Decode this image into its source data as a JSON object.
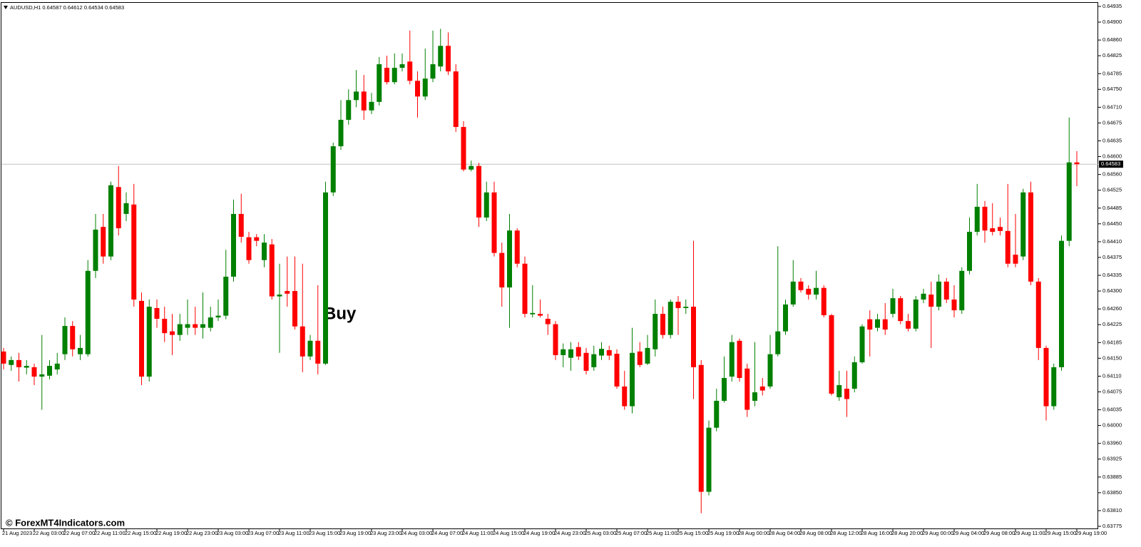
{
  "chart_data": {
    "type": "candlestick",
    "header": "AUDUSD,H1  0.64587 0.64612 0.64534 0.64583",
    "annotation": "Buy",
    "up_color": "#008000",
    "down_color": "#ff0000",
    "current_price": 0.64583,
    "ylim": [
      0.63775,
      0.64935
    ],
    "yticks": [
      0.64935,
      {
        "value": 0.649,
        "label": "0.64900"
      },
      {
        "value": 0.6486,
        "label": "0.64860"
      },
      0.64825,
      0.64785,
      {
        "value": 0.6475,
        "label": "0.64750"
      },
      {
        "value": 0.6471,
        "label": "0.64710"
      },
      0.64675,
      0.64635,
      {
        "value": 0.646,
        "label": "0.64600"
      },
      {
        "value": 0.6456,
        "label": "0.64560"
      },
      0.64525,
      0.64485,
      {
        "value": 0.6445,
        "label": "0.64450"
      },
      {
        "value": 0.6441,
        "label": "0.64410"
      },
      0.64375,
      0.64335,
      {
        "value": 0.643,
        "label": "0.64300"
      },
      {
        "value": 0.6426,
        "label": "0.64260"
      },
      0.64225,
      0.64185,
      {
        "value": 0.6415,
        "label": "0.64150"
      },
      {
        "value": 0.6411,
        "label": "0.64110"
      },
      0.64075,
      0.64035,
      {
        "value": 0.64,
        "label": "0.64000"
      },
      {
        "value": 0.6396,
        "label": "0.63960"
      },
      0.63925,
      0.63885,
      {
        "value": 0.6385,
        "label": "0.63850"
      },
      {
        "value": 0.6381,
        "label": "0.63810"
      },
      0.63775
    ],
    "categories": [
      "21 Aug 2023",
      null,
      null,
      null,
      "22 Aug 03:00",
      null,
      null,
      null,
      "22 Aug 07:00",
      null,
      null,
      null,
      "22 Aug 11:00",
      null,
      null,
      null,
      "22 Aug 15:00",
      null,
      null,
      null,
      "22 Aug 19:00",
      null,
      null,
      null,
      "22 Aug 23:00",
      null,
      null,
      null,
      "23 Aug 03:00",
      null,
      null,
      null,
      "23 Aug 07:00",
      null,
      null,
      null,
      "23 Aug 11:00",
      null,
      null,
      null,
      "23 Aug 15:00",
      null,
      null,
      null,
      "23 Aug 19:00",
      null,
      null,
      null,
      "23 Aug 23:00",
      null,
      null,
      null,
      "24 Aug 03:00",
      null,
      null,
      null,
      "24 Aug 07:00",
      null,
      null,
      null,
      "24 Aug 11:00",
      null,
      null,
      null,
      "24 Aug 15:00",
      null,
      null,
      null,
      "24 Aug 19:00",
      null,
      null,
      null,
      "24 Aug 23:00",
      null,
      null,
      null,
      "25 Aug 03:00",
      null,
      null,
      null,
      "25 Aug 07:00",
      null,
      null,
      null,
      "25 Aug 11:00",
      null,
      null,
      null,
      "25 Aug 15:00",
      null,
      null,
      null,
      "25 Aug 19:00",
      null,
      null,
      null,
      "28 Aug 00:00",
      null,
      null,
      null,
      "28 Aug 04:00",
      null,
      null,
      null,
      "28 Aug 08:00",
      null,
      null,
      null,
      "28 Aug 12:00",
      null,
      null,
      null,
      "28 Aug 16:00",
      null,
      null,
      null,
      "28 Aug 20:00",
      null,
      null,
      null,
      "29 Aug 00:00",
      null,
      null,
      null,
      "29 Aug 04:00",
      null,
      null,
      null,
      "29 Aug 08:00",
      null,
      null,
      null,
      "29 Aug 11:00",
      null,
      null,
      null,
      "29 Aug 15:00",
      null,
      null,
      null,
      "29 Aug 19:00"
    ],
    "open": [
      0.64165,
      0.64135,
      0.64146,
      0.64129,
      0.6413,
      0.64109,
      0.64111,
      0.64125,
      0.64159,
      0.64222,
      0.64159,
      0.64159,
      0.64345,
      0.64443,
      0.64377,
      0.64532,
      0.64472,
      0.64493,
      0.64278,
      0.64109,
      0.64262,
      0.64238,
      0.6421,
      0.64202,
      0.64218,
      0.64226,
      0.64218,
      0.64218,
      0.64241,
      0.64245,
      0.64332,
      0.64472,
      0.6442,
      0.6442,
      0.64369,
      0.64404,
      0.64288,
      0.643,
      0.643,
      0.64221,
      0.64154,
      0.64189,
      0.64138,
      0.6452,
      0.64623,
      0.64682,
      0.64726,
      0.64745,
      0.64703,
      0.64722,
      0.64798,
      0.64766,
      0.64798,
      0.64812,
      0.64769,
      0.64734,
      0.64774,
      0.64801,
      0.64847,
      0.6479,
      0.64666,
      0.64571,
      0.64579,
      0.64464,
      0.6452,
      0.64385,
      0.64308,
      0.64435,
      0.64361,
      0.64248,
      0.64249,
      0.64238,
      0.64226,
      0.64157,
      0.64151,
      0.64175,
      0.64162,
      0.6413,
      0.64156,
      0.64168,
      0.6416,
      0.64087,
      0.64043,
      0.64165,
      0.64138,
      0.6417,
      0.64249,
      0.64202,
      0.64276,
      0.64262,
      0.64265,
      0.64135,
      0.63852,
      0.63995,
      0.64055,
      0.64109,
      0.64189,
      0.64127,
      0.64055,
      0.64087,
      0.64087,
      0.64159,
      0.6421,
      0.6427,
      0.64321,
      0.64305,
      0.64292,
      0.64307,
      0.64246,
      0.64063,
      0.64082,
      0.64082,
      0.64141,
      0.64237,
      0.64218,
      0.64237,
      0.64249,
      0.64284,
      0.64233,
      0.64216,
      0.64281,
      0.64292,
      0.64265,
      0.64321,
      0.64281,
      0.64257,
      0.64345,
      0.64432,
      0.64488,
      0.6444,
      0.64443,
      0.64434,
      0.64381,
      0.64377,
      0.6452,
      0.64321,
      0.64173,
      0.64043,
      0.6413,
      0.64412,
      0.64587
    ],
    "high": [
      0.64173,
      0.64154,
      0.64162,
      0.64146,
      0.64138,
      0.64202,
      0.64146,
      0.64162,
      0.64241,
      0.64233,
      0.64202,
      0.64369,
      0.64472,
      0.64472,
      0.64544,
      0.64579,
      0.6452,
      0.64539,
      0.64297,
      0.64281,
      0.64281,
      0.64265,
      0.64249,
      0.64249,
      0.64281,
      0.64265,
      0.64297,
      0.64265,
      0.64281,
      0.64392,
      0.64504,
      0.64517,
      0.64432,
      0.64427,
      0.64427,
      0.64416,
      0.64361,
      0.64377,
      0.64377,
      0.64361,
      0.64202,
      0.64313,
      0.64544,
      0.64631,
      0.64726,
      0.6475,
      0.64793,
      0.64782,
      0.64742,
      0.64822,
      0.64825,
      0.6483,
      0.6483,
      0.64881,
      0.6479,
      0.64841,
      0.64881,
      0.64885,
      0.64877,
      0.64806,
      0.64679,
      0.64591,
      0.64586,
      0.64544,
      0.64544,
      0.64408,
      0.64472,
      0.6444,
      0.64377,
      0.64313,
      0.64281,
      0.64249,
      0.64233,
      0.64183,
      0.64186,
      0.64186,
      0.64173,
      0.64178,
      0.64186,
      0.64178,
      0.6417,
      0.64122,
      0.64218,
      0.64186,
      0.64202,
      0.64281,
      0.64265,
      0.64281,
      0.64289,
      0.64281,
      0.64412,
      0.64146,
      0.64011,
      0.64082,
      0.64154,
      0.64202,
      0.64194,
      0.64138,
      0.64186,
      0.64106,
      0.64202,
      0.644,
      0.64281,
      0.64369,
      0.64329,
      0.64313,
      0.64345,
      0.64313,
      0.64249,
      0.64122,
      0.64122,
      0.64154,
      0.64226,
      0.64257,
      0.64249,
      0.64273,
      0.64305,
      0.64289,
      0.64249,
      0.64289,
      0.64305,
      0.64321,
      0.64337,
      0.64329,
      0.64313,
      0.64353,
      0.64464,
      0.64539,
      0.64501,
      0.64496,
      0.64464,
      0.64539,
      0.64472,
      0.64528,
      0.64544,
      0.64329,
      0.64178,
      0.64138,
      0.64424,
      0.64687,
      0.64612
    ],
    "low": [
      0.64125,
      0.64122,
      0.64098,
      0.64114,
      0.6409,
      0.64035,
      0.64103,
      0.64114,
      0.64146,
      0.64154,
      0.64146,
      0.64154,
      0.64329,
      0.64361,
      0.64369,
      0.64424,
      0.64456,
      0.64265,
      0.6409,
      0.64098,
      0.64218,
      0.64186,
      0.64157,
      0.64189,
      0.64202,
      0.64202,
      0.64194,
      0.6421,
      0.64233,
      0.64237,
      0.64321,
      0.64408,
      0.64361,
      0.644,
      0.64353,
      0.64281,
      0.64162,
      0.64265,
      0.64214,
      0.64119,
      0.64146,
      0.64114,
      0.64135,
      0.64512,
      0.64615,
      0.64671,
      0.6471,
      0.64682,
      0.64695,
      0.64714,
      0.64761,
      0.64761,
      0.6479,
      0.64761,
      0.64687,
      0.64726,
      0.64766,
      0.6479,
      0.64782,
      0.64655,
      0.64567,
      0.64567,
      0.64443,
      0.64456,
      0.64377,
      0.64265,
      0.64218,
      0.64353,
      0.64241,
      0.64241,
      0.64241,
      0.64202,
      0.64146,
      0.6413,
      0.64122,
      0.64146,
      0.64114,
      0.64122,
      0.64146,
      0.64146,
      0.64082,
      0.64035,
      0.64027,
      0.6413,
      0.64135,
      0.64154,
      0.64194,
      0.64194,
      0.64202,
      0.64249,
      0.64059,
      0.63804,
      0.63844,
      0.63987,
      0.64051,
      0.64098,
      0.64098,
      0.64019,
      0.64043,
      0.64067,
      0.64082,
      0.64154,
      0.64202,
      0.64265,
      0.64297,
      0.64281,
      0.64281,
      0.64241,
      0.64067,
      0.64055,
      0.64019,
      0.64074,
      0.64138,
      0.64154,
      0.6421,
      0.64202,
      0.64241,
      0.64226,
      0.6421,
      0.6421,
      0.64273,
      0.64173,
      0.64257,
      0.64273,
      0.64241,
      0.64249,
      0.64337,
      0.64424,
      0.64408,
      0.64424,
      0.64424,
      0.64353,
      0.64353,
      0.64369,
      0.64313,
      0.64146,
      0.64011,
      0.64035,
      0.64122,
      0.644,
      0.64534
    ],
    "close": [
      0.64138,
      0.64146,
      0.6413,
      0.64133,
      0.64109,
      0.64114,
      0.64133,
      0.64138,
      0.64222,
      0.6417,
      0.64173,
      0.64345,
      0.64437,
      0.64377,
      0.64536,
      0.6444,
      0.64496,
      0.64281,
      0.64109,
      0.64265,
      0.64238,
      0.64206,
      0.64202,
      0.64226,
      0.64226,
      0.64218,
      0.64226,
      0.64241,
      0.64245,
      0.64332,
      0.64472,
      0.64421,
      0.64369,
      0.64412,
      0.64408,
      0.64288,
      0.64292,
      0.64294,
      0.64221,
      0.64154,
      0.64189,
      0.64138,
      0.6452,
      0.64623,
      0.64682,
      0.64726,
      0.64745,
      0.64703,
      0.64722,
      0.64806,
      0.64766,
      0.64798,
      0.64806,
      0.64769,
      0.64734,
      0.64774,
      0.64806,
      0.64847,
      0.6479,
      0.64666,
      0.64571,
      0.64579,
      0.64464,
      0.6452,
      0.64385,
      0.64308,
      0.64435,
      0.64361,
      0.64249,
      0.64251,
      0.64245,
      0.64226,
      0.64157,
      0.6417,
      0.6417,
      0.64154,
      0.64122,
      0.64159,
      0.64171,
      0.64156,
      0.64087,
      0.64043,
      0.64162,
      0.64135,
      0.64173,
      0.64249,
      0.64202,
      0.64276,
      0.64262,
      0.64265,
      0.6413,
      0.63852,
      0.63995,
      0.64055,
      0.64106,
      0.64186,
      0.64106,
      0.64035,
      0.64074,
      0.64078,
      0.64159,
      0.6421,
      0.6427,
      0.64321,
      0.64302,
      0.64292,
      0.64307,
      0.64246,
      0.64071,
      0.6409,
      0.64059,
      0.64141,
      0.64221,
      0.64214,
      0.64237,
      0.64214,
      0.64284,
      0.64233,
      0.64216,
      0.64281,
      0.64294,
      0.64265,
      0.64321,
      0.64281,
      0.64257,
      0.64345,
      0.64432,
      0.64488,
      0.64435,
      0.64432,
      0.64434,
      0.64361,
      0.64361,
      0.6452,
      0.64321,
      0.64173,
      0.64043,
      0.6413,
      0.64412,
      0.64587,
      0.64583
    ]
  },
  "watermark": "© ForexMT4Indicators.com"
}
